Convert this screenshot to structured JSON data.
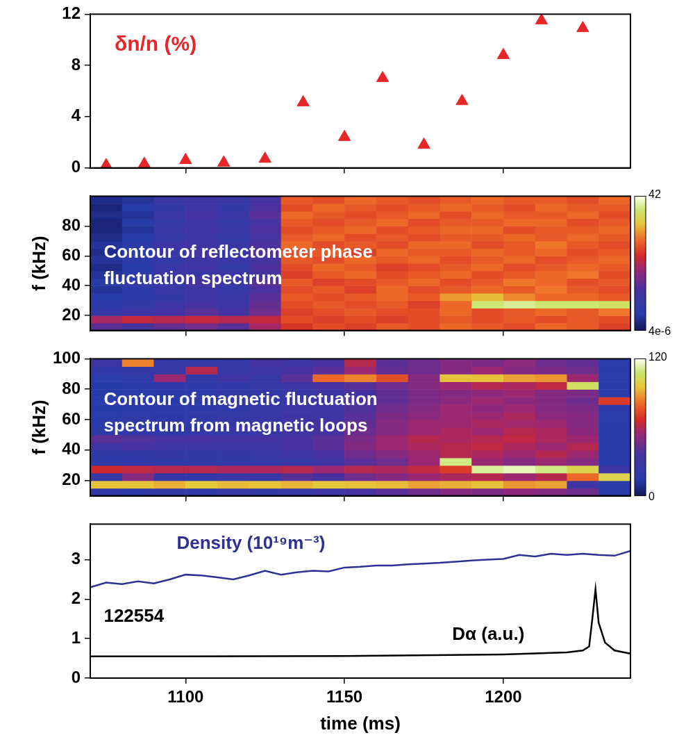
{
  "chart_data": [
    {
      "type": "scatter",
      "annotation": "δn/n (%)",
      "color": "#e8262a",
      "marker": "triangle",
      "x": [
        1075,
        1087,
        1100,
        1112,
        1125,
        1137,
        1150,
        1162,
        1175,
        1187,
        1200,
        1212,
        1225
      ],
      "values": [
        0.2,
        0.3,
        0.6,
        0.4,
        0.7,
        5.1,
        2.4,
        7.0,
        1.8,
        5.2,
        8.8,
        11.5,
        10.9
      ],
      "xlim": [
        1070,
        1240
      ],
      "xticks": [
        1100,
        1150,
        1200
      ],
      "ylim": [
        0,
        12
      ],
      "yticks": [
        0,
        4,
        8,
        12
      ],
      "grid": false,
      "tick_labels": "y"
    },
    {
      "type": "heatmap",
      "annotation": "Contour of reflectometer phase fluctuation spectrum",
      "y_label": "f (kHz)",
      "x": [
        1075,
        1085,
        1095,
        1105,
        1115,
        1125,
        1135,
        1145,
        1155,
        1165,
        1175,
        1185,
        1195,
        1205,
        1215,
        1225,
        1235
      ],
      "y": [
        12.5,
        17.5,
        22.5,
        27.5,
        32.5,
        37.5,
        42.5,
        47.5,
        52.5,
        57.5,
        62.5,
        67.5,
        72.5,
        77.5,
        82.5,
        87.5,
        92.5,
        97.5
      ],
      "cells": [
        [
          14,
          12,
          15,
          16,
          14,
          20,
          24,
          26,
          25,
          27,
          26,
          28,
          27,
          26,
          28,
          27,
          25
        ],
        [
          20,
          22,
          21,
          22,
          21,
          22,
          26,
          25,
          26,
          25,
          26,
          27,
          26,
          27,
          26,
          27,
          26
        ],
        [
          8,
          10,
          12,
          14,
          12,
          16,
          25,
          26,
          27,
          26,
          26,
          28,
          26,
          27,
          28,
          27,
          29
        ],
        [
          6,
          8,
          10,
          12,
          10,
          15,
          26,
          27,
          26,
          27,
          25,
          28,
          38,
          39,
          38,
          38,
          37
        ],
        [
          5,
          6,
          8,
          10,
          9,
          14,
          27,
          26,
          27,
          28,
          27,
          31,
          33,
          30,
          28,
          28,
          27
        ],
        [
          4,
          6,
          9,
          11,
          8,
          13,
          26,
          27,
          25,
          28,
          26,
          27,
          28,
          27,
          29,
          27,
          26
        ],
        [
          5,
          7,
          8,
          12,
          9,
          14,
          27,
          25,
          26,
          27,
          28,
          26,
          27,
          29,
          28,
          26,
          27
        ],
        [
          4,
          6,
          10,
          9,
          10,
          12,
          25,
          27,
          28,
          26,
          27,
          28,
          26,
          27,
          28,
          29,
          26
        ],
        [
          3,
          5,
          9,
          11,
          8,
          13,
          26,
          28,
          27,
          25,
          26,
          27,
          28,
          26,
          27,
          28,
          27
        ],
        [
          4,
          6,
          8,
          10,
          9,
          12,
          27,
          26,
          28,
          27,
          28,
          26,
          27,
          28,
          26,
          27,
          28
        ],
        [
          3,
          5,
          9,
          12,
          8,
          14,
          26,
          27,
          25,
          28,
          27,
          27,
          28,
          27,
          28,
          26,
          27
        ],
        [
          4,
          6,
          10,
          11,
          9,
          13,
          28,
          26,
          27,
          26,
          28,
          28,
          26,
          27,
          29,
          27,
          26
        ],
        [
          3,
          5,
          8,
          10,
          8,
          12,
          27,
          28,
          26,
          27,
          26,
          27,
          27,
          28,
          27,
          28,
          27
        ],
        [
          2,
          4,
          9,
          11,
          9,
          13,
          26,
          27,
          28,
          26,
          27,
          28,
          28,
          26,
          27,
          27,
          28
        ],
        [
          2,
          5,
          8,
          10,
          8,
          12,
          27,
          26,
          27,
          28,
          26,
          27,
          27,
          28,
          28,
          26,
          27
        ],
        [
          3,
          4,
          9,
          12,
          9,
          14,
          28,
          27,
          26,
          27,
          28,
          26,
          28,
          27,
          27,
          28,
          26
        ],
        [
          2,
          5,
          8,
          11,
          8,
          13,
          26,
          28,
          27,
          26,
          27,
          28,
          27,
          26,
          28,
          27,
          27
        ],
        [
          3,
          4,
          9,
          10,
          9,
          12,
          27,
          26,
          28,
          27,
          26,
          27,
          28,
          27,
          27,
          26,
          28
        ]
      ],
      "colorbar": {
        "range": [
          4e-06,
          42
        ],
        "ticks": [
          {
            "value": 4e-06,
            "label": "4e-6"
          },
          42
        ]
      },
      "xlim": [
        1070,
        1240
      ],
      "xticks": [
        1100,
        1150,
        1200
      ],
      "ylim": [
        10,
        100
      ],
      "yticks": [
        20,
        40,
        60,
        80
      ],
      "grid": false,
      "tick_labels": "y"
    },
    {
      "type": "heatmap",
      "annotation": "Contour of magnetic fluctuation spectrum from magnetic loops",
      "y_label": "f (kHz)",
      "x": [
        1075,
        1085,
        1095,
        1105,
        1115,
        1125,
        1135,
        1145,
        1155,
        1165,
        1175,
        1185,
        1195,
        1205,
        1215,
        1225,
        1235
      ],
      "y": [
        12.5,
        17.5,
        22.5,
        27.5,
        32.5,
        37.5,
        42.5,
        47.5,
        52.5,
        57.5,
        62.5,
        67.5,
        72.5,
        77.5,
        82.5,
        87.5,
        92.5,
        97.5
      ],
      "cells": [
        [
          20,
          18,
          22,
          20,
          25,
          22,
          24,
          30,
          35,
          40,
          45,
          50,
          48,
          52,
          50,
          45,
          15
        ],
        [
          95,
          95,
          92,
          96,
          94,
          95,
          93,
          96,
          95,
          94,
          90,
          92,
          95,
          88,
          90,
          30,
          15
        ],
        [
          25,
          50,
          22,
          20,
          25,
          24,
          40,
          35,
          45,
          50,
          55,
          58,
          60,
          55,
          60,
          80,
          100
        ],
        [
          65,
          62,
          60,
          60,
          58,
          58,
          60,
          55,
          60,
          58,
          62,
          70,
          112,
          115,
          110,
          100,
          30
        ],
        [
          18,
          20,
          18,
          22,
          20,
          22,
          25,
          30,
          40,
          45,
          55,
          110,
          55,
          50,
          55,
          50,
          15
        ],
        [
          18,
          20,
          22,
          20,
          22,
          25,
          28,
          35,
          45,
          50,
          55,
          60,
          58,
          55,
          60,
          55,
          15
        ],
        [
          30,
          35,
          32,
          30,
          28,
          30,
          35,
          40,
          50,
          55,
          58,
          60,
          62,
          58,
          55,
          60,
          15
        ],
        [
          40,
          38,
          36,
          35,
          34,
          33,
          36,
          40,
          48,
          55,
          60,
          58,
          60,
          62,
          58,
          55,
          15
        ],
        [
          18,
          20,
          20,
          22,
          25,
          24,
          30,
          35,
          45,
          50,
          55,
          58,
          55,
          60,
          58,
          52,
          15
        ],
        [
          16,
          18,
          20,
          18,
          22,
          25,
          28,
          35,
          42,
          50,
          55,
          55,
          58,
          56,
          55,
          50,
          15
        ],
        [
          15,
          18,
          16,
          20,
          22,
          25,
          30,
          32,
          40,
          48,
          52,
          55,
          55,
          58,
          52,
          50,
          15
        ],
        [
          14,
          16,
          18,
          18,
          20,
          24,
          28,
          30,
          38,
          45,
          50,
          55,
          52,
          55,
          50,
          48,
          18
        ],
        [
          15,
          14,
          16,
          18,
          20,
          22,
          26,
          30,
          38,
          42,
          48,
          52,
          55,
          52,
          50,
          45,
          70
        ],
        [
          14,
          15,
          16,
          17,
          20,
          22,
          25,
          28,
          35,
          42,
          48,
          50,
          52,
          55,
          50,
          48,
          15
        ],
        [
          14,
          16,
          20,
          18,
          20,
          24,
          28,
          35,
          40,
          45,
          50,
          55,
          60,
          58,
          62,
          105,
          15
        ],
        [
          15,
          18,
          55,
          20,
          30,
          25,
          40,
          80,
          85,
          75,
          50,
          95,
          95,
          90,
          88,
          55,
          15
        ],
        [
          20,
          22,
          25,
          60,
          25,
          28,
          35,
          40,
          55,
          42,
          45,
          50,
          55,
          50,
          48,
          45,
          15
        ],
        [
          30,
          85,
          25,
          22,
          25,
          35,
          30,
          35,
          60,
          40,
          45,
          50,
          48,
          52,
          45,
          42,
          15
        ]
      ],
      "colorbar": {
        "range": [
          0,
          120
        ],
        "ticks": [
          0,
          120
        ]
      },
      "xlim": [
        1070,
        1240
      ],
      "xticks": [
        1100,
        1150,
        1200
      ],
      "ylim": [
        10,
        100
      ],
      "yticks": [
        20,
        40,
        60,
        80,
        100
      ],
      "grid": false,
      "tick_labels": "y"
    },
    {
      "type": "line",
      "x_label": "time (ms)",
      "annotation": "122554",
      "xlim": [
        1070,
        1240
      ],
      "xticks": [
        1100,
        1150,
        1200
      ],
      "ylim": [
        0,
        3.9
      ],
      "yticks": [
        0,
        1,
        2,
        3
      ],
      "grid": false,
      "series": [
        {
          "name": "Density (10¹⁹m⁻³)",
          "color": "#2e3192",
          "x": [
            1070,
            1075,
            1080,
            1085,
            1090,
            1095,
            1100,
            1105,
            1110,
            1115,
            1120,
            1125,
            1130,
            1135,
            1140,
            1145,
            1150,
            1155,
            1160,
            1165,
            1170,
            1175,
            1180,
            1185,
            1190,
            1195,
            1200,
            1205,
            1210,
            1215,
            1220,
            1225,
            1230,
            1235,
            1240
          ],
          "values": [
            2.3,
            2.42,
            2.38,
            2.45,
            2.4,
            2.5,
            2.62,
            2.6,
            2.55,
            2.5,
            2.6,
            2.72,
            2.62,
            2.68,
            2.72,
            2.7,
            2.8,
            2.82,
            2.85,
            2.85,
            2.88,
            2.9,
            2.92,
            2.95,
            2.98,
            3.0,
            3.02,
            3.12,
            3.08,
            3.15,
            3.12,
            3.15,
            3.12,
            3.1,
            3.22
          ]
        },
        {
          "name": "Dα (a.u.)",
          "color": "#000000",
          "x": [
            1070,
            1100,
            1150,
            1200,
            1220,
            1225,
            1227,
            1228,
            1229,
            1230,
            1232,
            1235,
            1240
          ],
          "values": [
            0.55,
            0.55,
            0.56,
            0.6,
            0.65,
            0.7,
            0.8,
            1.5,
            2.25,
            1.4,
            0.9,
            0.7,
            0.62
          ]
        }
      ]
    }
  ]
}
